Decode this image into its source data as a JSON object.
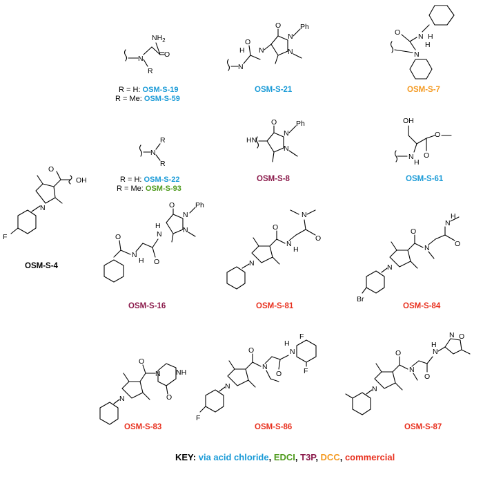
{
  "colors": {
    "acid_chloride": "#1b9bd7",
    "edci": "#4e9a1c",
    "t3p": "#8b1a4b",
    "dcc": "#f49a22",
    "commercial": "#e8301e",
    "text": "#000000"
  },
  "atoms": {
    "N": "N",
    "NH2": "NH2",
    "R": "R",
    "H": "H",
    "O": "O",
    "OH": "OH",
    "Ph": "Ph",
    "F": "F",
    "Br": "Br",
    "NH": "NH",
    "HN": "HN",
    "N_amine": "N"
  },
  "compounds": [
    {
      "id": "OSM-S-19",
      "r_prefix": "R = H:",
      "method": "acid_chloride"
    },
    {
      "id": "OSM-S-59",
      "r_prefix": "R = Me:",
      "method": "acid_chloride"
    },
    {
      "id": "OSM-S-21",
      "method": "acid_chloride"
    },
    {
      "id": "OSM-S-7",
      "method": "dcc"
    },
    {
      "id": "OSM-S-22",
      "r_prefix": "R = H:",
      "method": "acid_chloride"
    },
    {
      "id": "OSM-S-93",
      "r_prefix": "R = Me:",
      "method": "edci"
    },
    {
      "id": "OSM-S-8",
      "method": "t3p"
    },
    {
      "id": "OSM-S-61",
      "method": "acid_chloride"
    },
    {
      "id": "OSM-S-4",
      "method": "none"
    },
    {
      "id": "OSM-S-16",
      "method": "t3p"
    },
    {
      "id": "OSM-S-81",
      "method": "commercial"
    },
    {
      "id": "OSM-S-84",
      "method": "commercial"
    },
    {
      "id": "OSM-S-83",
      "method": "commercial"
    },
    {
      "id": "OSM-S-86",
      "method": "commercial"
    },
    {
      "id": "OSM-S-87",
      "method": "commercial"
    }
  ],
  "key": {
    "title": "KEY:",
    "items": [
      {
        "label": "via acid chloride",
        "method": "acid_chloride"
      },
      {
        "label": "EDCI",
        "method": "edci"
      },
      {
        "label": "T3P",
        "method": "t3p"
      },
      {
        "label": "DCC",
        "method": "dcc"
      },
      {
        "label": "commercial",
        "method": "commercial"
      }
    ],
    "separator": ", "
  }
}
